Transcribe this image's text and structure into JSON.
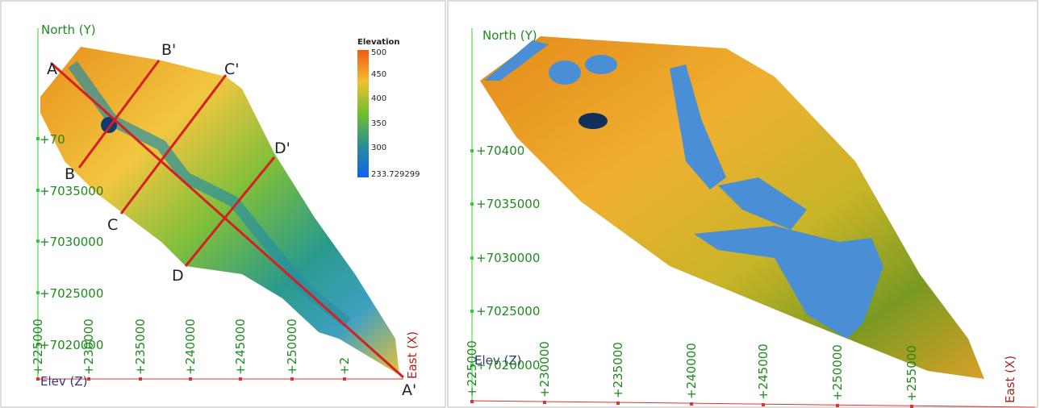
{
  "left_view": {
    "axis_y_title": "North (Y)",
    "axis_z_title": "Elev (Z)",
    "axis_x_title": "East (X)",
    "y_tick_labels": [
      "+70",
      "+7035000",
      "+7030000",
      "+7025000",
      "+7020000"
    ],
    "x_tick_labels": [
      "+225000",
      "+230000",
      "+235000",
      "+240000",
      "+245000",
      "+250000",
      "+2"
    ],
    "sections": [
      "A",
      "A'",
      "B",
      "B'",
      "C",
      "C'",
      "D",
      "D'"
    ],
    "legend": {
      "title": "Elevation",
      "labels": [
        "500",
        "450",
        "400",
        "350",
        "300",
        "233.729299"
      ]
    }
  },
  "right_view": {
    "axis_y_title": "North (Y)",
    "axis_z_title": "Elev (Z)",
    "axis_x_title": "East (X)",
    "y_tick_labels": [
      "+70400",
      "+7035000",
      "+7030000",
      "+7025000",
      "+7020000"
    ],
    "x_tick_labels": [
      "+225000",
      "+230000",
      "+235000",
      "+240000",
      "+245000",
      "+250000",
      "+255000"
    ]
  }
}
